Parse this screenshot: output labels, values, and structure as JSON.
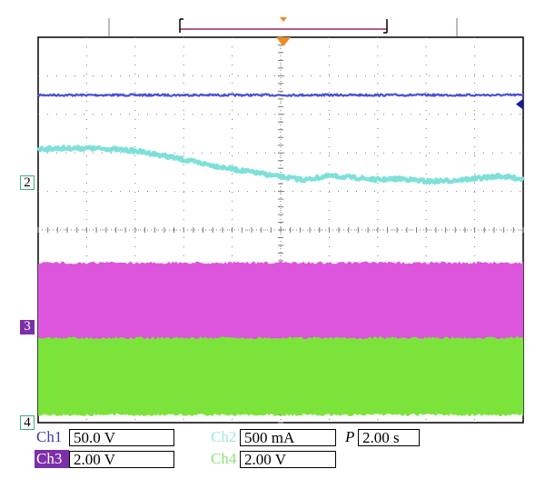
{
  "chart_data": {
    "type": "line",
    "title": "",
    "xlabel": "",
    "ylabel": "",
    "grid": true,
    "x": [
      0,
      0.5,
      1,
      1.5,
      2,
      2.5,
      3,
      3.5,
      4,
      4.5,
      5,
      5.5,
      6,
      6.5,
      7,
      7.5,
      8,
      8.5,
      9,
      9.5,
      10
    ],
    "series": [
      {
        "name": "Ch1",
        "color": "#4a52d4",
        "values": [
          2.5,
          2.5,
          2.5,
          2.5,
          2.5,
          2.5,
          2.5,
          2.5,
          2.5,
          2.5,
          2.5,
          2.5,
          2.5,
          2.5,
          2.5,
          2.5,
          2.5,
          2.5,
          2.5,
          2.5,
          2.5
        ]
      },
      {
        "name": "Ch2",
        "color": "#7fe0da",
        "values": [
          1.1,
          1.12,
          1.12,
          1.1,
          1.05,
          0.95,
          0.82,
          0.7,
          0.58,
          0.48,
          0.38,
          0.3,
          0.4,
          0.36,
          0.3,
          0.33,
          0.26,
          0.28,
          0.33,
          0.4,
          0.32
        ]
      },
      {
        "name": "Ch3",
        "color": "#dd55dd",
        "values": [
          -2.85,
          -2.85,
          -2.85,
          -2.85,
          -2.85,
          -2.85,
          -2.85,
          -2.85,
          -2.85,
          -2.85,
          -2.85,
          -2.85,
          -2.85,
          -2.85,
          -2.85,
          -2.85,
          -2.85,
          -2.85,
          -2.85,
          -2.85,
          -2.85
        ],
        "band_low": [
          -3.85,
          -3.85,
          -3.85,
          -3.85,
          -3.85,
          -3.85,
          -3.85,
          -3.85,
          -3.85,
          -3.85,
          -3.85,
          -3.85,
          -3.85,
          -3.85,
          -3.85,
          -3.85,
          -3.85,
          -3.85,
          -3.85,
          -3.85,
          -3.85
        ],
        "band_high": [
          -1.85,
          -1.85,
          -1.85,
          -1.85,
          -1.85,
          -1.85,
          -1.85,
          -1.85,
          -1.85,
          -1.85,
          -1.85,
          -1.85,
          -1.85,
          -1.85,
          -1.85,
          -1.85,
          -1.85,
          -1.85,
          -1.85,
          -1.85,
          -1.85
        ]
      },
      {
        "name": "Ch4",
        "color": "#7ce33a",
        "values": [
          -4.8,
          -4.8,
          -4.8,
          -4.8,
          -4.8,
          -4.8,
          -4.8,
          -4.8,
          -4.8,
          -4.8,
          -4.8,
          -4.8,
          -4.8,
          -4.8,
          -4.8,
          -4.8,
          -4.8,
          -4.8,
          -4.8,
          -4.8,
          -4.8
        ],
        "band_low": [
          -5.8,
          -5.8,
          -5.8,
          -5.8,
          -5.8,
          -5.8,
          -5.8,
          -5.8,
          -5.8,
          -5.8,
          -5.8,
          -5.8,
          -5.8,
          -5.8,
          -5.8,
          -5.8,
          -5.8,
          -5.8,
          -5.8,
          -5.8,
          -5.8
        ],
        "band_high": [
          -3.8,
          -3.8,
          -3.8,
          -3.8,
          -3.8,
          -3.8,
          -3.8,
          -3.8,
          -3.8,
          -3.8,
          -3.8,
          -3.8,
          -3.8,
          -3.8,
          -3.8,
          -3.8,
          -3.8,
          -3.8,
          -3.8,
          -3.8,
          -3.8
        ]
      }
    ],
    "xlim": [
      0,
      10
    ],
    "ylim": [
      -6,
      4
    ]
  },
  "colors": {
    "grid": "#7a7a7a",
    "trigger": "#f08a1e",
    "ch1_level": "#1a1aa0",
    "window_bar": "#9b2b5a"
  },
  "markers": {
    "ch2": "2",
    "ch3": "3",
    "ch4": "4"
  },
  "settings": {
    "ch1": {
      "label": "Ch1",
      "value": "50.0 V"
    },
    "ch2": {
      "label": "Ch2",
      "value": "500 mA"
    },
    "ch3": {
      "label": "Ch3",
      "value": "2.00 V"
    },
    "ch4": {
      "label": "Ch4",
      "value": "2.00 V"
    },
    "period": {
      "label": "P",
      "value": "2.00 s"
    }
  }
}
